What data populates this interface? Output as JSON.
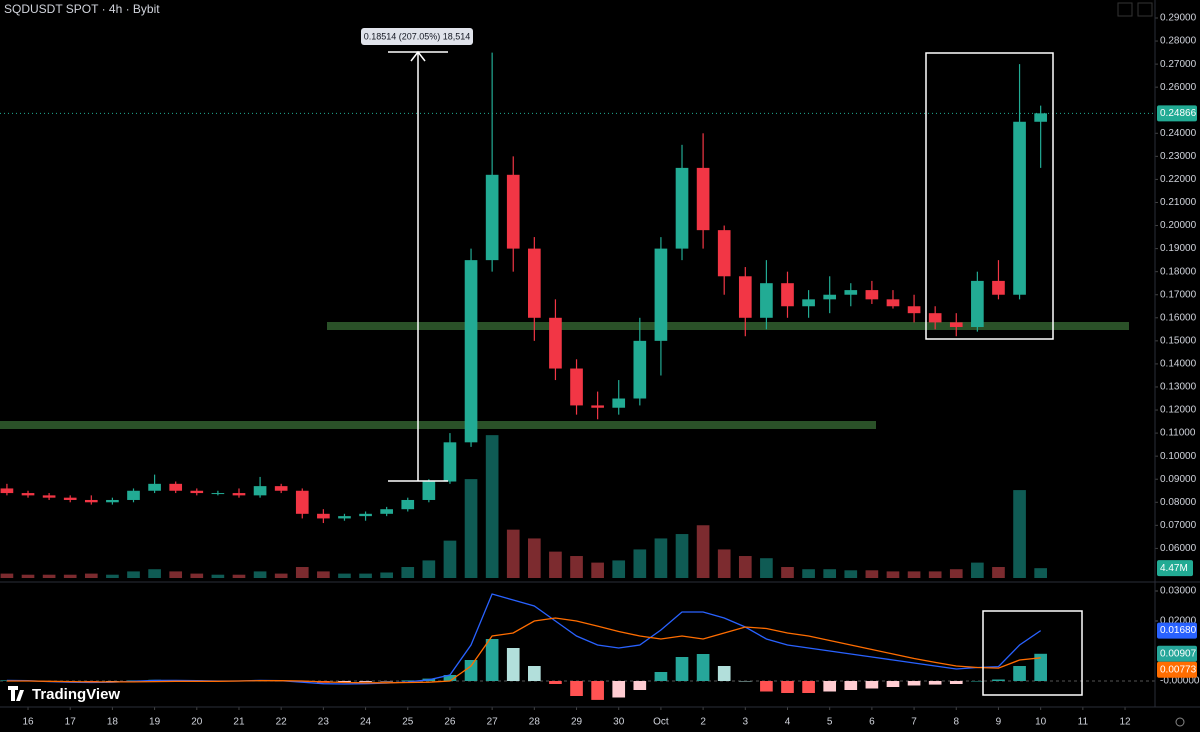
{
  "chart_data": {
    "type": "candlestick",
    "title": "SQDUSDT SPOT · 4h · Bybit",
    "annotation": "0.18514 (207.05%) 18,514",
    "brand": "TradingView",
    "x": [
      15.5,
      16,
      16.5,
      17,
      17.5,
      18,
      18.5,
      19,
      19.5,
      20,
      20.5,
      21,
      21.5,
      22,
      22.5,
      23,
      23.5,
      24,
      24.5,
      25,
      25.5,
      26,
      26.5,
      27,
      27.5,
      28,
      28.5,
      29,
      29.5,
      30,
      30.5,
      31,
      31.5,
      32,
      32.5,
      33,
      33.5,
      34,
      34.5,
      35,
      35.5,
      36,
      36.5,
      37,
      37.5,
      38,
      38.5,
      39,
      39.5,
      40
    ],
    "open": [
      0.086,
      0.084,
      0.083,
      0.082,
      0.081,
      0.08,
      0.081,
      0.085,
      0.088,
      0.085,
      0.084,
      0.084,
      0.083,
      0.087,
      0.085,
      0.075,
      0.073,
      0.074,
      0.075,
      0.077,
      0.081,
      0.089,
      0.106,
      0.185,
      0.222,
      0.19,
      0.16,
      0.138,
      0.122,
      0.121,
      0.125,
      0.15,
      0.19,
      0.225,
      0.198,
      0.178,
      0.16,
      0.175,
      0.165,
      0.168,
      0.17,
      0.172,
      0.168,
      0.165,
      0.162,
      0.158,
      0.156,
      0.176,
      0.17,
      0.245
    ],
    "high": [
      0.088,
      0.085,
      0.084,
      0.083,
      0.083,
      0.082,
      0.086,
      0.092,
      0.089,
      0.086,
      0.085,
      0.086,
      0.091,
      0.088,
      0.086,
      0.077,
      0.075,
      0.076,
      0.078,
      0.082,
      0.09,
      0.11,
      0.19,
      0.275,
      0.23,
      0.195,
      0.168,
      0.142,
      0.128,
      0.133,
      0.16,
      0.195,
      0.235,
      0.24,
      0.2,
      0.182,
      0.185,
      0.18,
      0.172,
      0.178,
      0.175,
      0.176,
      0.172,
      0.17,
      0.165,
      0.162,
      0.18,
      0.185,
      0.27,
      0.252
    ],
    "low": [
      0.083,
      0.082,
      0.081,
      0.08,
      0.079,
      0.079,
      0.08,
      0.084,
      0.084,
      0.083,
      0.083,
      0.082,
      0.082,
      0.084,
      0.073,
      0.071,
      0.072,
      0.072,
      0.074,
      0.076,
      0.08,
      0.088,
      0.104,
      0.18,
      0.18,
      0.15,
      0.133,
      0.118,
      0.116,
      0.118,
      0.122,
      0.135,
      0.185,
      0.19,
      0.17,
      0.152,
      0.155,
      0.16,
      0.16,
      0.162,
      0.165,
      0.166,
      0.164,
      0.158,
      0.155,
      0.152,
      0.154,
      0.168,
      0.168,
      0.225
    ],
    "close": [
      0.084,
      0.083,
      0.082,
      0.081,
      0.08,
      0.081,
      0.085,
      0.088,
      0.085,
      0.084,
      0.084,
      0.083,
      0.087,
      0.085,
      0.075,
      0.073,
      0.074,
      0.075,
      0.077,
      0.081,
      0.089,
      0.106,
      0.185,
      0.222,
      0.19,
      0.16,
      0.138,
      0.122,
      0.121,
      0.125,
      0.15,
      0.19,
      0.225,
      0.198,
      0.178,
      0.16,
      0.175,
      0.165,
      0.168,
      0.17,
      0.172,
      0.168,
      0.165,
      0.162,
      0.158,
      0.156,
      0.176,
      0.17,
      0.245,
      0.24866
    ],
    "up_color": "#22ab94",
    "down_color": "#f23645",
    "xlim": [
      15.336,
      42.71
    ],
    "xticks": [
      16,
      17,
      18,
      19,
      20,
      21,
      22,
      23,
      24,
      25,
      26,
      27,
      28,
      29,
      30,
      {
        "value": 31,
        "label": "Oct"
      },
      {
        "value": 32,
        "label": "2"
      },
      {
        "value": 33,
        "label": "3"
      },
      {
        "value": 34,
        "label": "4"
      },
      {
        "value": 35,
        "label": "5"
      },
      {
        "value": 36,
        "label": "6"
      },
      {
        "value": 37,
        "label": "7"
      },
      {
        "value": 38,
        "label": "8"
      },
      {
        "value": 39,
        "label": "9"
      },
      {
        "value": 40,
        "label": "10"
      },
      {
        "value": 41,
        "label": "11"
      },
      {
        "value": 42,
        "label": "12"
      }
    ],
    "ylim": [
      0.0463,
      0.2978
    ],
    "yticks": [
      {
        "value": 0.29,
        "label": "0.29000"
      },
      {
        "value": 0.28,
        "label": "0.28000"
      },
      {
        "value": 0.27,
        "label": "0.27000"
      },
      {
        "value": 0.26,
        "label": "0.26000"
      },
      {
        "value": 0.24,
        "label": "0.24000"
      },
      {
        "value": 0.23,
        "label": "0.23000"
      },
      {
        "value": 0.22,
        "label": "0.22000"
      },
      {
        "value": 0.21,
        "label": "0.21000"
      },
      {
        "value": 0.2,
        "label": "0.20000"
      },
      {
        "value": 0.19,
        "label": "0.19000"
      },
      {
        "value": 0.18,
        "label": "0.18000"
      },
      {
        "value": 0.17,
        "label": "0.17000"
      },
      {
        "value": 0.16,
        "label": "0.16000"
      },
      {
        "value": 0.15,
        "label": "0.15000"
      },
      {
        "value": 0.14,
        "label": "0.14000"
      },
      {
        "value": 0.13,
        "label": "0.13000"
      },
      {
        "value": 0.12,
        "label": "0.12000"
      },
      {
        "value": 0.11,
        "label": "0.11000"
      },
      {
        "value": 0.1,
        "label": "0.10000"
      },
      {
        "value": 0.09,
        "label": "0.09000"
      },
      {
        "value": 0.08,
        "label": "0.08000"
      },
      {
        "value": 0.07,
        "label": "0.07000"
      },
      {
        "value": 0.06,
        "label": "0.06000"
      }
    ],
    "volume": {
      "axis": "y2",
      "up_color": "#0f5b54",
      "down_color": "#7c2b2f",
      "last_label": "4.47M",
      "values": [
        2,
        1.5,
        1.5,
        1.5,
        2,
        1.5,
        3,
        4,
        3,
        2,
        1.5,
        1.5,
        3,
        2,
        5,
        3,
        2,
        2,
        2.5,
        5,
        8,
        17,
        45,
        65,
        22,
        18,
        12,
        10,
        7,
        8,
        13,
        18,
        20,
        24,
        13,
        10,
        9,
        5,
        4,
        4,
        3.5,
        3.5,
        3,
        3,
        3,
        4,
        7,
        5,
        40,
        4.47
      ]
    },
    "y2lim": [
      0,
      263
    ],
    "histogram": {
      "axis": "y3",
      "color": "#26a69a",
      "last_label": "0.00907",
      "values": [
        0.0002,
        0.0001,
        -0.0001,
        -0.0002,
        -0.0002,
        -0.0001,
        0.0002,
        0.0004,
        0.0003,
        0.0002,
        0.0001,
        0,
        0.0001,
        0,
        -0.0004,
        -0.0006,
        -0.0005,
        -0.0003,
        -0.0001,
        0.0002,
        0.0008,
        0.002,
        0.007,
        0.014,
        0.011,
        0.005,
        -0.001,
        -0.005,
        -0.0063,
        -0.0055,
        -0.003,
        0.003,
        0.008,
        0.009,
        0.005,
        0,
        -0.0035,
        -0.004,
        -0.004,
        -0.0035,
        -0.003,
        -0.0025,
        -0.002,
        -0.0015,
        -0.0012,
        -0.001,
        0,
        0.0005,
        0.005,
        0.00907
      ]
    },
    "macd": {
      "axis": "y3",
      "color": "#2962ff",
      "last_label": "0.01680",
      "values": [
        0.0002,
        0.0001,
        -0.0002,
        -0.0004,
        -0.0005,
        -0.0004,
        -0.0001,
        0.0002,
        0.0002,
        0.0001,
        0,
        0,
        0.0002,
        0.0001,
        -0.0004,
        -0.0009,
        -0.001,
        -0.0009,
        -0.0007,
        -0.0003,
        0.0004,
        0.002,
        0.012,
        0.029,
        0.027,
        0.025,
        0.02,
        0.015,
        0.012,
        0.011,
        0.012,
        0.017,
        0.023,
        0.023,
        0.021,
        0.018,
        0.014,
        0.012,
        0.011,
        0.01,
        0.009,
        0.008,
        0.007,
        0.006,
        0.005,
        0.004,
        0.0045,
        0.0048,
        0.012,
        0.0168
      ]
    },
    "signal": {
      "axis": "y3",
      "color": "#ff6d00",
      "last_label": "0.00773",
      "values": [
        0,
        0,
        -0.0001,
        -0.0002,
        -0.0003,
        -0.0003,
        -0.0003,
        -0.0002,
        -0.0001,
        -0.0001,
        -0.0001,
        0,
        0.0001,
        0.0001,
        0,
        -0.0003,
        -0.0005,
        -0.0006,
        -0.0006,
        -0.0005,
        -0.0004,
        0,
        0.005,
        0.015,
        0.016,
        0.02,
        0.021,
        0.02,
        0.0183,
        0.0165,
        0.015,
        0.014,
        0.015,
        0.014,
        0.016,
        0.018,
        0.0175,
        0.016,
        0.015,
        0.0135,
        0.012,
        0.0105,
        0.009,
        0.0075,
        0.0062,
        0.005,
        0.0045,
        0.0043,
        0.007,
        0.00773
      ]
    },
    "y3lim": [
      -0.008,
      0.032
    ],
    "y3ticks": [
      {
        "value": 0.03,
        "label": "0.03000"
      },
      {
        "value": 0.02,
        "label": "0.02000"
      },
      {
        "value": 0,
        "label": "-0.00000"
      }
    ]
  }
}
